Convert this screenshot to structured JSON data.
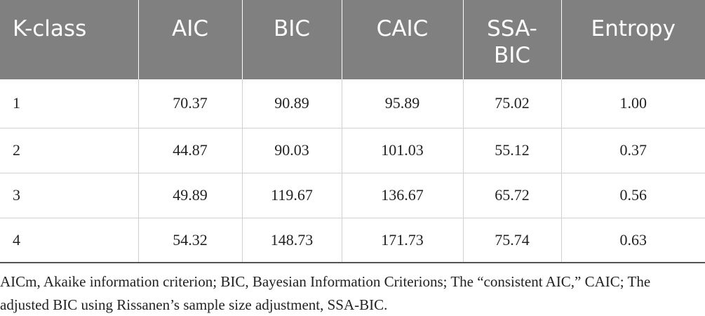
{
  "table": {
    "header": [
      "K-class",
      "AIC",
      "BIC",
      "CAIC",
      "SSA-BIC",
      "Entropy"
    ],
    "rows": [
      [
        "1",
        "70.37",
        "90.89",
        "95.89",
        "75.02",
        "1.00"
      ],
      [
        "2",
        "44.87",
        "90.03",
        "101.03",
        "55.12",
        "0.37"
      ],
      [
        "3",
        "49.89",
        "119.67",
        "136.67",
        "65.72",
        "0.56"
      ],
      [
        "4",
        "54.32",
        "148.73",
        "171.73",
        "75.74",
        "0.63"
      ]
    ]
  },
  "footnote": "AICm, Akaike information criterion; BIC, Bayesian Information Criterions; The “consistent AIC,” CAIC; The adjusted BIC using Rissanen’s sample size adjustment, SSA-BIC."
}
